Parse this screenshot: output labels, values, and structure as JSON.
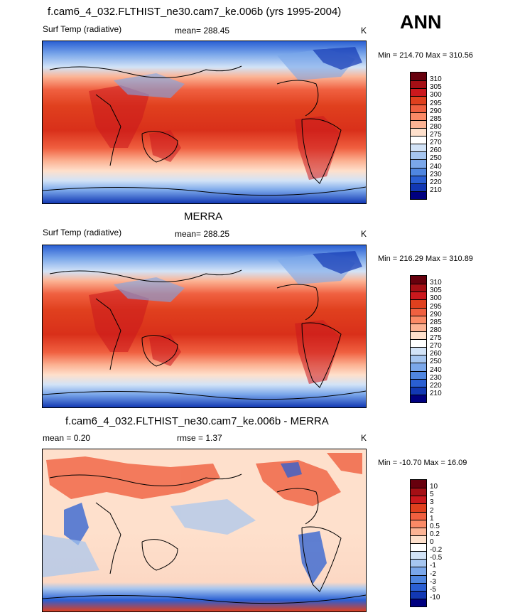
{
  "season": "ANN",
  "panels": [
    {
      "id": "model",
      "title": "f.cam6_4_032.FLTHIST_ne30.cam7_ke.006b (yrs 1995-2004)",
      "left_label": "Surf Temp (radiative)",
      "center_label": "mean= 288.45",
      "units": "K",
      "minmax": "Min = 214.70 Max = 310.56",
      "colorbar": {
        "labels": [
          "310",
          "305",
          "300",
          "295",
          "290",
          "285",
          "280",
          "275",
          "270",
          "260",
          "250",
          "240",
          "230",
          "220",
          "210"
        ],
        "colors": [
          "#67000d",
          "#a50f15",
          "#cb181d",
          "#e0401e",
          "#f06040",
          "#fb8a66",
          "#fcb394",
          "#fee0cc",
          "#ffffff",
          "#d2e3f7",
          "#a6c6f0",
          "#7aa7ea",
          "#4f86e0",
          "#2a5fd3",
          "#1238b3",
          "#000080"
        ]
      }
    },
    {
      "id": "obs",
      "title": "MERRA",
      "left_label": "Surf Temp (radiative)",
      "center_label": "mean= 288.25",
      "units": "K",
      "minmax": "Min = 216.29 Max = 310.89",
      "colorbar": {
        "labels": [
          "310",
          "305",
          "300",
          "295",
          "290",
          "285",
          "280",
          "275",
          "270",
          "260",
          "250",
          "240",
          "230",
          "220",
          "210"
        ],
        "colors": [
          "#67000d",
          "#a50f15",
          "#cb181d",
          "#e0401e",
          "#f06040",
          "#fb8a66",
          "#fcb394",
          "#fee0cc",
          "#ffffff",
          "#d2e3f7",
          "#a6c6f0",
          "#7aa7ea",
          "#4f86e0",
          "#2a5fd3",
          "#1238b3",
          "#000080"
        ]
      }
    },
    {
      "id": "diff",
      "title": "f.cam6_4_032.FLTHIST_ne30.cam7_ke.006b - MERRA",
      "left_label": "mean =   0.20",
      "center_label": "rmse =   1.37",
      "units": "K",
      "minmax": "Min = -10.70 Max =  16.09",
      "colorbar": {
        "labels": [
          "10",
          "5",
          "3",
          "2",
          "1",
          "0.5",
          "0.2",
          "0",
          "-0.2",
          "-0.5",
          "-1",
          "-2",
          "-3",
          "-5",
          "-10"
        ],
        "colors": [
          "#67000d",
          "#a50f15",
          "#cb181d",
          "#e0401e",
          "#f06040",
          "#fb8a66",
          "#fcb394",
          "#fee0cc",
          "#ffffff",
          "#d2e3f7",
          "#a6c6f0",
          "#7aa7ea",
          "#4f86e0",
          "#2a5fd3",
          "#1238b3",
          "#000080"
        ]
      }
    }
  ]
}
